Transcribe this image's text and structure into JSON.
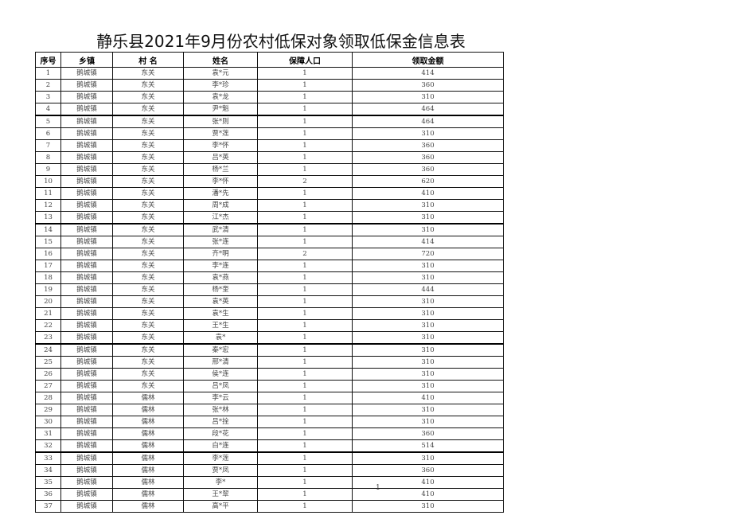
{
  "title": "静乐县2021年9月份农村低保对象领取低保金信息表",
  "columns": [
    "序号",
    "乡镇",
    "村 名",
    "姓名",
    "保障人口",
    "领取金额"
  ],
  "rows": [
    [
      "1",
      "鹅城镇",
      "东关",
      "袁*元",
      "1",
      "414"
    ],
    [
      "2",
      "鹅城镇",
      "东关",
      "李*珍",
      "1",
      "360"
    ],
    [
      "3",
      "鹅城镇",
      "东关",
      "袁*龙",
      "1",
      "310"
    ],
    [
      "4",
      "鹅城镇",
      "东关",
      "尹*魁",
      "1",
      "464"
    ],
    [
      "5",
      "鹅城镇",
      "东关",
      "张*则",
      "1",
      "464"
    ],
    [
      "6",
      "鹅城镇",
      "东关",
      "贾*莲",
      "1",
      "310"
    ],
    [
      "7",
      "鹅城镇",
      "东关",
      "李*怀",
      "1",
      "360"
    ],
    [
      "8",
      "鹅城镇",
      "东关",
      "吕*英",
      "1",
      "360"
    ],
    [
      "9",
      "鹅城镇",
      "东关",
      "杨*兰",
      "1",
      "360"
    ],
    [
      "10",
      "鹅城镇",
      "东关",
      "李*怀",
      "2",
      "620"
    ],
    [
      "11",
      "鹅城镇",
      "东关",
      "潘*先",
      "1",
      "410"
    ],
    [
      "12",
      "鹅城镇",
      "东关",
      "周*成",
      "1",
      "310"
    ],
    [
      "13",
      "鹅城镇",
      "东关",
      "江*杰",
      "1",
      "310"
    ],
    [
      "14",
      "鹅城镇",
      "东关",
      "武*清",
      "1",
      "310"
    ],
    [
      "15",
      "鹅城镇",
      "东关",
      "张*连",
      "1",
      "414"
    ],
    [
      "16",
      "鹅城镇",
      "东关",
      "齐*明",
      "2",
      "720"
    ],
    [
      "17",
      "鹅城镇",
      "东关",
      "李*连",
      "1",
      "310"
    ],
    [
      "18",
      "鹅城镇",
      "东关",
      "袁*燕",
      "1",
      "310"
    ],
    [
      "19",
      "鹅城镇",
      "东关",
      "杨*奎",
      "1",
      "444"
    ],
    [
      "20",
      "鹅城镇",
      "东关",
      "袁*英",
      "1",
      "310"
    ],
    [
      "21",
      "鹅城镇",
      "东关",
      "袁*生",
      "1",
      "310"
    ],
    [
      "22",
      "鹅城镇",
      "东关",
      "王*生",
      "1",
      "310"
    ],
    [
      "23",
      "鹅城镇",
      "东关",
      "袁*",
      "1",
      "310"
    ],
    [
      "24",
      "鹅城镇",
      "东关",
      "秦*宏",
      "1",
      "310"
    ],
    [
      "25",
      "鹅城镇",
      "东关",
      "邢*清",
      "1",
      "310"
    ],
    [
      "26",
      "鹅城镇",
      "东关",
      "侯*连",
      "1",
      "310"
    ],
    [
      "27",
      "鹅城镇",
      "东关",
      "吕*凤",
      "1",
      "310"
    ],
    [
      "28",
      "鹅城镇",
      "儒林",
      "李*云",
      "1",
      "410"
    ],
    [
      "29",
      "鹅城镇",
      "儒林",
      "张*林",
      "1",
      "310"
    ],
    [
      "30",
      "鹅城镇",
      "儒林",
      "吕*拴",
      "1",
      "310"
    ],
    [
      "31",
      "鹅城镇",
      "儒林",
      "段*花",
      "1",
      "360"
    ],
    [
      "32",
      "鹅城镇",
      "儒林",
      "白*连",
      "1",
      "514"
    ],
    [
      "33",
      "鹅城镇",
      "儒林",
      "李*莲",
      "1",
      "310"
    ],
    [
      "34",
      "鹅城镇",
      "儒林",
      "贾*凤",
      "1",
      "360"
    ],
    [
      "35",
      "鹅城镇",
      "儒林",
      "李*",
      "1",
      "410"
    ],
    [
      "36",
      "鹅城镇",
      "儒林",
      "王*翠",
      "1",
      "410"
    ],
    [
      "37",
      "鹅城镇",
      "儒林",
      "高*平",
      "1",
      "310"
    ]
  ],
  "page_number": "1"
}
